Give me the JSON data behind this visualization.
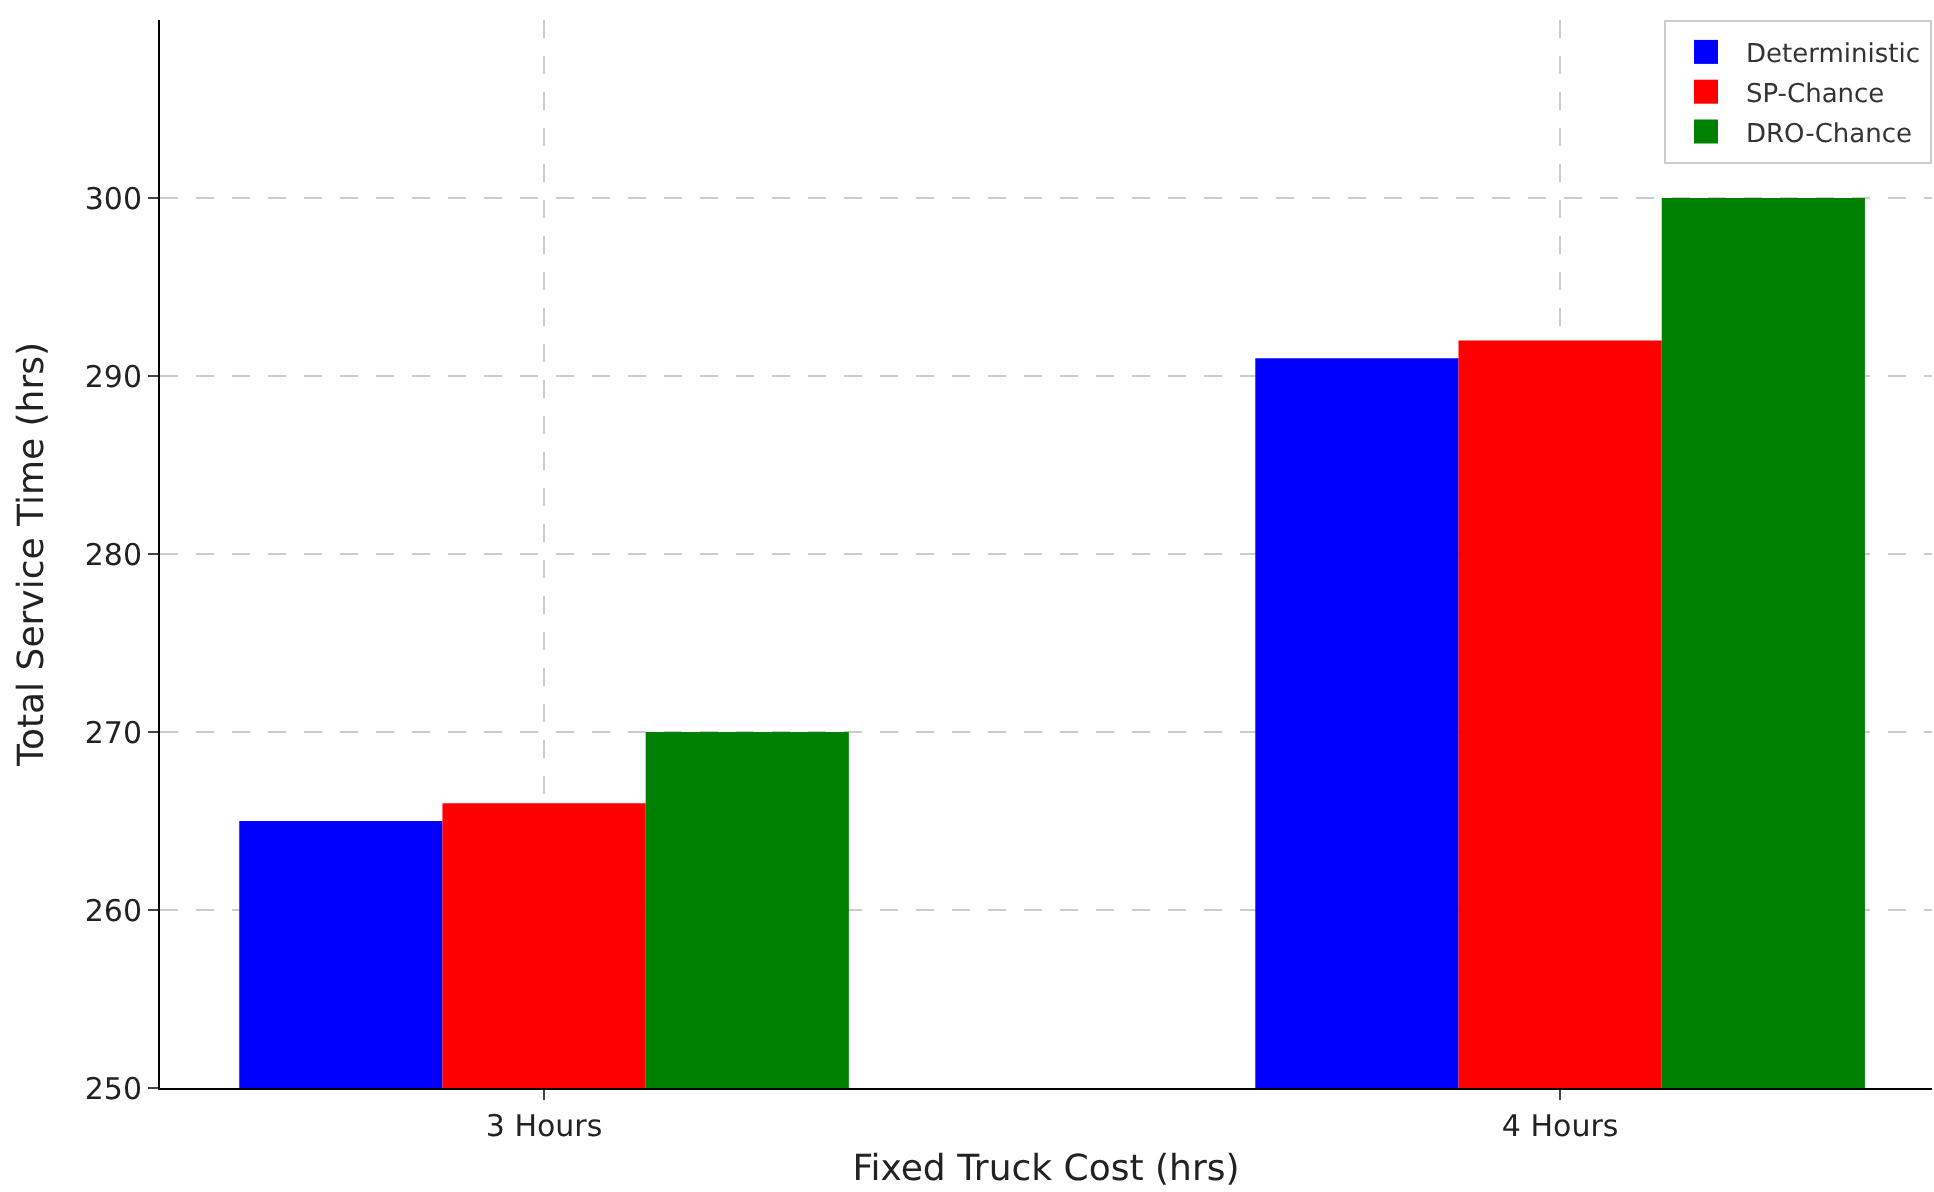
{
  "chart_data": {
    "type": "bar",
    "xlabel": "Fixed Truck Cost (hrs)",
    "ylabel": "Total Service Time (hrs)",
    "categories": [
      "3 Hours",
      "4 Hours"
    ],
    "series": [
      {
        "name": "Deterministic",
        "color": "#0000ff",
        "values": [
          265,
          291
        ]
      },
      {
        "name": "SP-Chance",
        "color": "#ff0000",
        "values": [
          266,
          292
        ]
      },
      {
        "name": "DRO-Chance",
        "color": "#008000",
        "values": [
          270,
          300
        ]
      }
    ],
    "ylim": [
      250,
      310
    ],
    "yticks": [
      250,
      260,
      270,
      280,
      290,
      300
    ],
    "grid": true,
    "legend": "top right"
  }
}
